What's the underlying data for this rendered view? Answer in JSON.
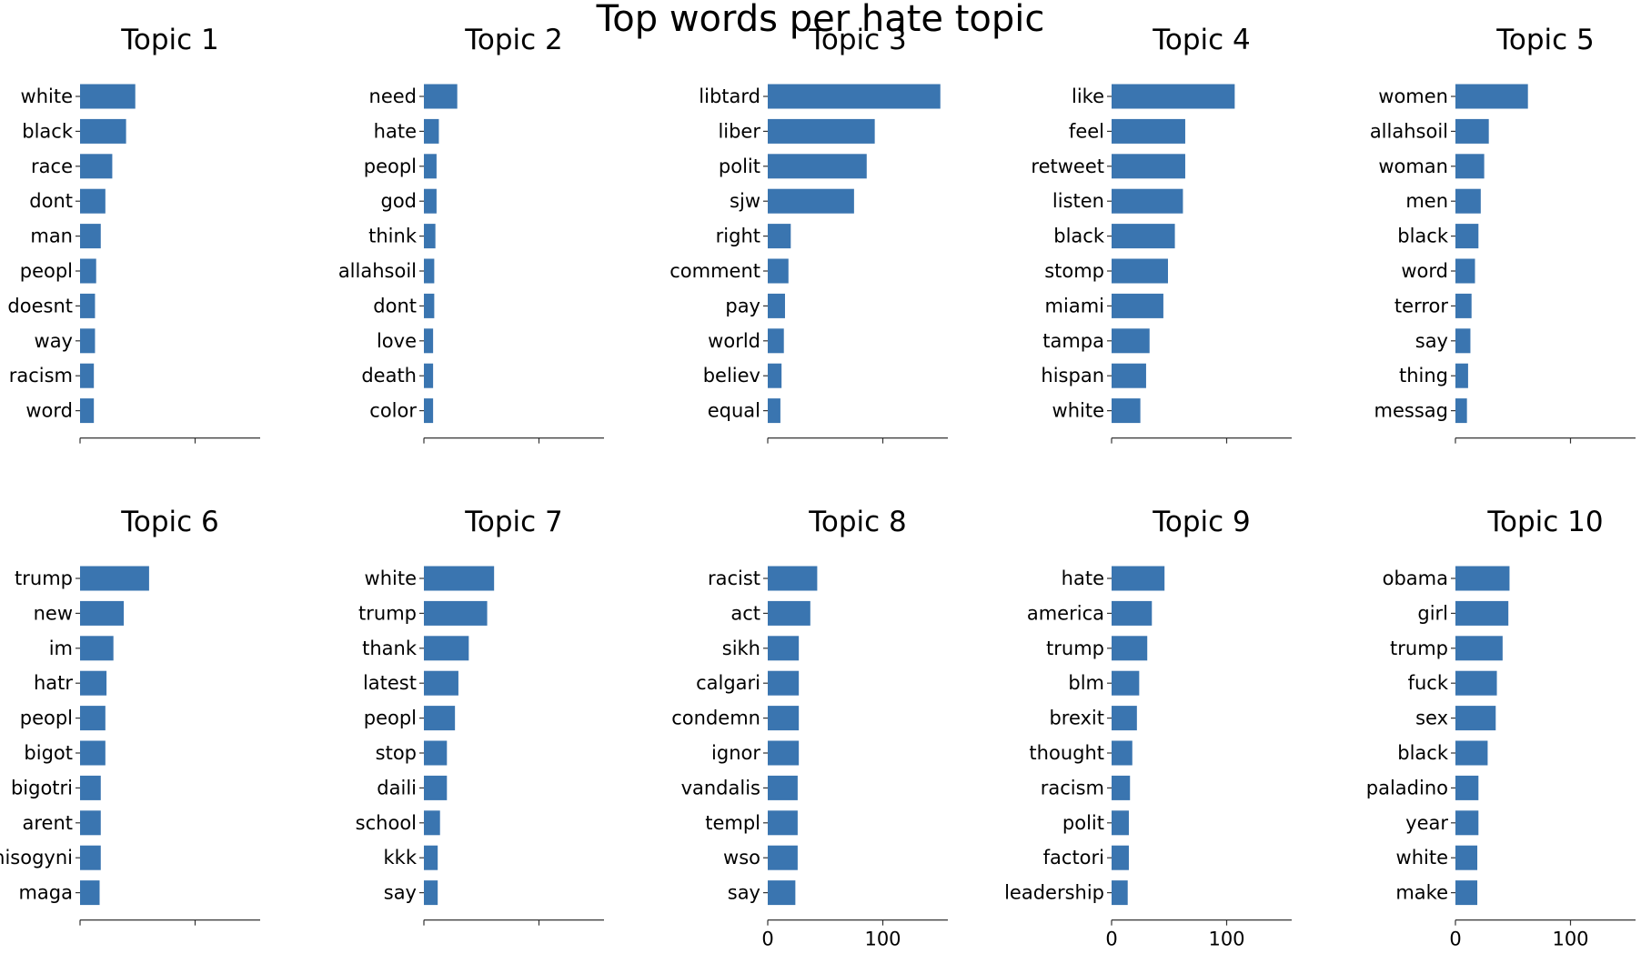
{
  "figure_title": "Top words per hate topic",
  "chart_data": [
    {
      "type": "bar",
      "orientation": "horizontal",
      "title": "Topic 1",
      "xlim": [
        0,
        160
      ],
      "xticks": [
        0,
        100
      ],
      "show_xtick_labels": false,
      "bar_color": "#3a75b0",
      "categories": [
        "white",
        "black",
        "race",
        "dont",
        "man",
        "peopl",
        "doesnt",
        "way",
        "racism",
        "word"
      ],
      "values": [
        48,
        40,
        28,
        22,
        18,
        14,
        13,
        13,
        12,
        12
      ]
    },
    {
      "type": "bar",
      "orientation": "horizontal",
      "title": "Topic 2",
      "xlim": [
        0,
        160
      ],
      "xticks": [
        0,
        100
      ],
      "show_xtick_labels": false,
      "bar_color": "#3a75b0",
      "categories": [
        "need",
        "hate",
        "peopl",
        "god",
        "think",
        "allahsoil",
        "dont",
        "love",
        "death",
        "color"
      ],
      "values": [
        29,
        13,
        11,
        11,
        10,
        9,
        9,
        8,
        8,
        8
      ]
    },
    {
      "type": "bar",
      "orientation": "horizontal",
      "title": "Topic 3",
      "xlim": [
        0,
        160
      ],
      "xticks": [
        0,
        100
      ],
      "show_xtick_labels": false,
      "bar_color": "#3a75b0",
      "categories": [
        "libtard",
        "liber",
        "polit",
        "sjw",
        "right",
        "comment",
        "pay",
        "world",
        "believ",
        "equal"
      ],
      "values": [
        150,
        93,
        86,
        75,
        20,
        18,
        15,
        14,
        12,
        11
      ]
    },
    {
      "type": "bar",
      "orientation": "horizontal",
      "title": "Topic 4",
      "xlim": [
        0,
        160
      ],
      "xticks": [
        0,
        100
      ],
      "show_xtick_labels": false,
      "bar_color": "#3a75b0",
      "categories": [
        "like",
        "feel",
        "retweet",
        "listen",
        "black",
        "stomp",
        "miami",
        "tampa",
        "hispan",
        "white"
      ],
      "values": [
        107,
        64,
        64,
        62,
        55,
        49,
        45,
        33,
        30,
        25
      ]
    },
    {
      "type": "bar",
      "orientation": "horizontal",
      "title": "Topic 5",
      "xlim": [
        0,
        160
      ],
      "xticks": [
        0,
        100
      ],
      "show_xtick_labels": false,
      "bar_color": "#3a75b0",
      "categories": [
        "women",
        "allahsoil",
        "woman",
        "men",
        "black",
        "word",
        "terror",
        "say",
        "thing",
        "messag"
      ],
      "values": [
        63,
        29,
        25,
        22,
        20,
        17,
        14,
        13,
        11,
        10
      ]
    },
    {
      "type": "bar",
      "orientation": "horizontal",
      "title": "Topic 6",
      "xlim": [
        0,
        160
      ],
      "xticks": [
        0,
        100
      ],
      "show_xtick_labels": false,
      "bar_color": "#3a75b0",
      "categories": [
        "trump",
        "new",
        "im",
        "hatr",
        "peopl",
        "bigot",
        "bigotri",
        "arent",
        "misogyni",
        "maga"
      ],
      "values": [
        60,
        38,
        29,
        23,
        22,
        22,
        18,
        18,
        18,
        17
      ]
    },
    {
      "type": "bar",
      "orientation": "horizontal",
      "title": "Topic 7",
      "xlim": [
        0,
        160
      ],
      "xticks": [
        0,
        100
      ],
      "show_xtick_labels": false,
      "bar_color": "#3a75b0",
      "categories": [
        "white",
        "trump",
        "thank",
        "latest",
        "peopl",
        "stop",
        "daili",
        "school",
        "kkk",
        "say"
      ],
      "values": [
        61,
        55,
        39,
        30,
        27,
        20,
        20,
        14,
        12,
        12
      ]
    },
    {
      "type": "bar",
      "orientation": "horizontal",
      "title": "Topic 8",
      "xlim": [
        0,
        160
      ],
      "xticks": [
        0,
        100
      ],
      "show_xtick_labels": true,
      "bar_color": "#3a75b0",
      "categories": [
        "racist",
        "act",
        "sikh",
        "calgari",
        "condemn",
        "ignor",
        "vandalis",
        "templ",
        "wso",
        "say"
      ],
      "values": [
        43,
        37,
        27,
        27,
        27,
        27,
        26,
        26,
        26,
        24
      ]
    },
    {
      "type": "bar",
      "orientation": "horizontal",
      "title": "Topic 9",
      "xlim": [
        0,
        160
      ],
      "xticks": [
        0,
        100
      ],
      "show_xtick_labels": true,
      "bar_color": "#3a75b0",
      "categories": [
        "hate",
        "america",
        "trump",
        "blm",
        "brexit",
        "thought",
        "racism",
        "polit",
        "factori",
        "leadership"
      ],
      "values": [
        46,
        35,
        31,
        24,
        22,
        18,
        16,
        15,
        15,
        14
      ]
    },
    {
      "type": "bar",
      "orientation": "horizontal",
      "title": "Topic 10",
      "xlim": [
        0,
        160
      ],
      "xticks": [
        0,
        100
      ],
      "show_xtick_labels": true,
      "bar_color": "#3a75b0",
      "categories": [
        "obama",
        "girl",
        "trump",
        "fuck",
        "sex",
        "black",
        "paladino",
        "year",
        "white",
        "make"
      ],
      "values": [
        47,
        46,
        41,
        36,
        35,
        28,
        20,
        20,
        19,
        19
      ]
    }
  ]
}
